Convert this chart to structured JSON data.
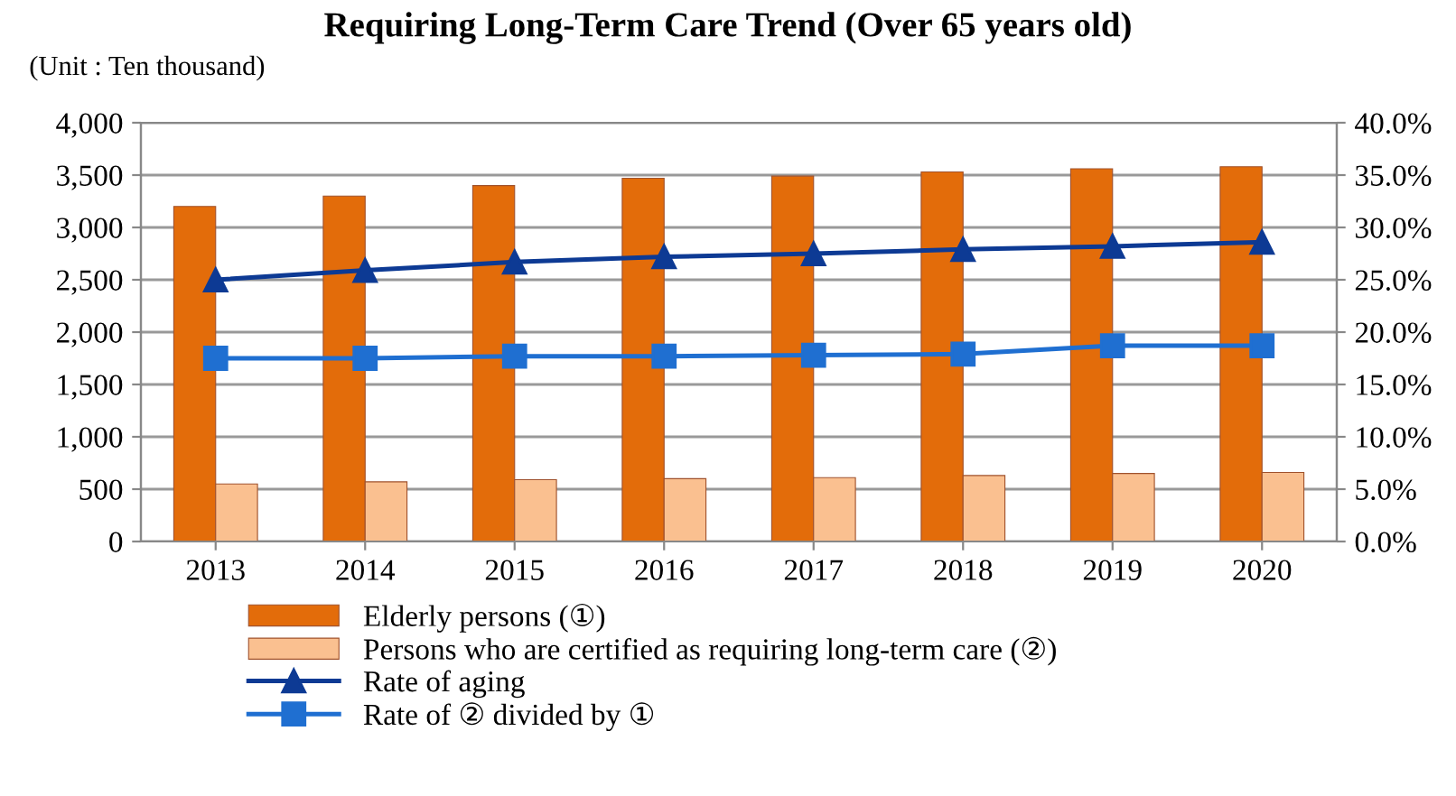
{
  "chart_data": {
    "type": "bar",
    "title": "Requiring Long-Term Care Trend (Over 65 years old)",
    "annotations": [
      "(Unit : Ten thousand)"
    ],
    "categories": [
      "2013",
      "2014",
      "2015",
      "2016",
      "2017",
      "2018",
      "2019",
      "2020"
    ],
    "series": [
      {
        "name": "Elderly persons (①)",
        "color": "#e36c0a",
        "values": [
          3200,
          3300,
          3400,
          3470,
          3490,
          3530,
          3560,
          3580
        ]
      },
      {
        "name": "Persons who are certified as requiring long-term care (②)",
        "color": "#fac090",
        "values": [
          550,
          570,
          590,
          600,
          610,
          630,
          650,
          660
        ]
      },
      {
        "name": "Rate of aging",
        "type": "line",
        "axis": "y2",
        "color": "#0d3a94",
        "marker": "triangle",
        "values": [
          25.0,
          25.9,
          26.7,
          27.2,
          27.5,
          27.9,
          28.2,
          28.6
        ]
      },
      {
        "name": "Rate of ② divided by ①",
        "type": "line",
        "axis": "y2",
        "color": "#1f6fd1",
        "marker": "square",
        "values": [
          17.5,
          17.5,
          17.7,
          17.7,
          17.8,
          17.9,
          18.7,
          18.7
        ]
      }
    ],
    "ylim": [
      0,
      4000
    ],
    "yticks": [
      {
        "value": 0,
        "label": "0"
      },
      {
        "value": 500,
        "label": "500"
      },
      {
        "value": 1000,
        "label": "1,000"
      },
      {
        "value": 1500,
        "label": "1,500"
      },
      {
        "value": 2000,
        "label": "2,000"
      },
      {
        "value": 2500,
        "label": "2,500"
      },
      {
        "value": 3000,
        "label": "3,000"
      },
      {
        "value": 3500,
        "label": "3,500"
      },
      {
        "value": 4000,
        "label": "4,000"
      }
    ],
    "y2lim": [
      0,
      40
    ],
    "y2ticks": [
      {
        "value": 0,
        "label": "0.0%"
      },
      {
        "value": 5,
        "label": "5.0%"
      },
      {
        "value": 10,
        "label": "10.0%"
      },
      {
        "value": 15,
        "label": "15.0%"
      },
      {
        "value": 20,
        "label": "20.0%"
      },
      {
        "value": 25,
        "label": "25.0%"
      },
      {
        "value": 30,
        "label": "30.0%"
      },
      {
        "value": 35,
        "label": "35.0%"
      },
      {
        "value": 40,
        "label": "40.0%"
      }
    ],
    "grid": "y",
    "legend": "bottom"
  }
}
